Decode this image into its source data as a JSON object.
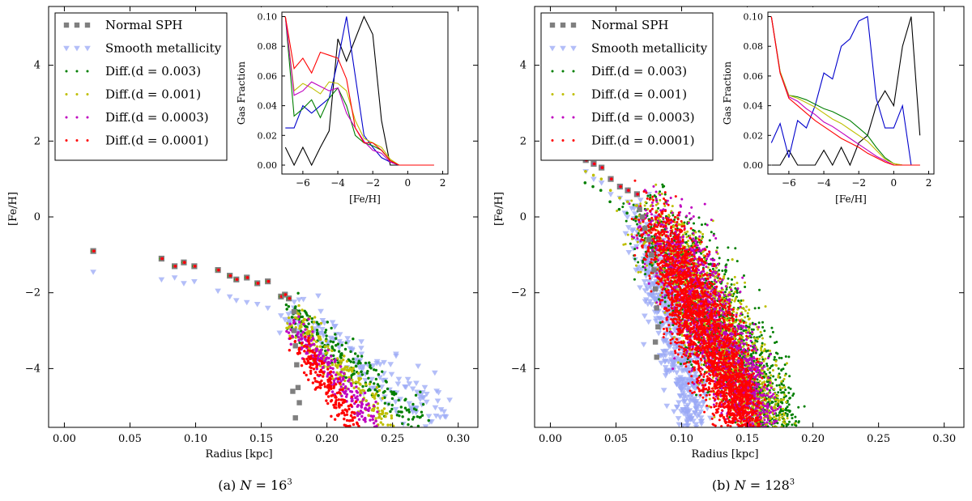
{
  "chart_data": [
    {
      "type": "scatter",
      "caption_prefix": "(a)",
      "caption_var": "N",
      "caption_eq": "= 16",
      "caption_exp": "3",
      "xlabel": "Radius [kpc]",
      "ylabel": "[Fe/H]",
      "xlim": [
        -0.012,
        0.315
      ],
      "ylim": [
        -5.55,
        5.55
      ],
      "xticks": [
        0.0,
        0.05,
        0.1,
        0.15,
        0.2,
        0.25,
        0.3
      ],
      "xticklabels": [
        "0.00",
        "0.05",
        "0.10",
        "0.15",
        "0.20",
        "0.25",
        "0.30"
      ],
      "yticks": [
        -4,
        -2,
        0,
        2,
        4
      ],
      "yticklabels": [
        "−4",
        "−2",
        "0",
        "2",
        "4"
      ],
      "legend": [
        {
          "label": "Normal SPH",
          "color": "#7f7f7f",
          "marker": "square"
        },
        {
          "label": "Smooth metallicity",
          "color": "#9aa8f5",
          "marker": "triangle"
        },
        {
          "label": "Diff.(d = 0.003)",
          "color": "#007f00",
          "marker": "dot"
        },
        {
          "label": "Diff.(d = 0.001)",
          "color": "#bfbf00",
          "marker": "dot"
        },
        {
          "label": "Diff.(d = 0.0003)",
          "color": "#bf00bf",
          "marker": "dot"
        },
        {
          "label": "Diff.(d = 0.0001)",
          "color": "#ff0000",
          "marker": "dot"
        }
      ],
      "core": {
        "radii": [
          0.022,
          0.074,
          0.084,
          0.091,
          0.099,
          0.117,
          0.126,
          0.131,
          0.139,
          0.147,
          0.155,
          0.165,
          0.168,
          0.171
        ],
        "normal": [
          -0.9,
          -1.1,
          -1.3,
          -1.2,
          -1.3,
          -1.4,
          -1.55,
          -1.65,
          -1.6,
          -1.75,
          -1.7,
          -2.1,
          -2.05,
          -2.15
        ],
        "smooth": [
          -1.45,
          -1.65,
          -1.6,
          -1.75,
          -1.7,
          -1.95,
          -2.1,
          -2.2,
          -2.25,
          -2.3,
          -2.4,
          -2.6,
          -2.7,
          -2.75
        ]
      },
      "tail": {
        "normal": {
          "x": [
            0.175,
            0.176,
            0.177,
            0.178,
            0.179,
            0.174,
            0.176,
            0.175
          ],
          "y": [
            -3.0,
            -3.4,
            -3.9,
            -4.5,
            -4.9,
            -4.6,
            -5.3,
            -2.5
          ]
        },
        "series": [
          {
            "name": "Smooth metallicity",
            "r0": 0.17,
            "r1": 0.292,
            "y0": -2.45,
            "y1": -5.5,
            "spread": 0.35,
            "n": 160
          },
          {
            "name": "Diff.(d = 0.003)",
            "r0": 0.172,
            "r1": 0.272,
            "y0": -2.45,
            "y1": -5.45,
            "spread": 0.22,
            "n": 220
          },
          {
            "name": "Diff.(d = 0.001)",
            "r0": 0.174,
            "r1": 0.248,
            "y0": -2.7,
            "y1": -5.45,
            "spread": 0.22,
            "n": 220
          },
          {
            "name": "Diff.(d = 0.0003)",
            "r0": 0.176,
            "r1": 0.236,
            "y0": -2.95,
            "y1": -5.45,
            "spread": 0.22,
            "n": 220
          },
          {
            "name": "Diff.(d = 0.0001)",
            "r0": 0.178,
            "r1": 0.22,
            "y0": -3.3,
            "y1": -5.45,
            "spread": 0.2,
            "n": 200
          }
        ]
      },
      "inset": {
        "xlabel": "[Fe/H]",
        "ylabel": "Gas Fraction",
        "xlim": [
          -7.2,
          2.3
        ],
        "ylim": [
          -0.006,
          0.103
        ],
        "xticks": [
          -6,
          -4,
          -2,
          0,
          2
        ],
        "xticklabels": [
          "−6",
          "−4",
          "−2",
          "0",
          "2"
        ],
        "yticks": [
          0.0,
          0.02,
          0.04,
          0.06,
          0.08,
          0.1
        ],
        "yticklabels": [
          "0.00",
          "0.02",
          "0.04",
          "0.06",
          "0.08",
          "0.10"
        ],
        "x": [
          -7.0,
          -6.5,
          -6.0,
          -5.5,
          -5.0,
          -4.5,
          -4.0,
          -3.5,
          -3.0,
          -2.5,
          -2.0,
          -1.5,
          -1.0,
          -0.5,
          0.0,
          0.5,
          1.0,
          1.5
        ],
        "series": [
          {
            "name": "Normal SPH",
            "color": "#000000",
            "values": [
              0.012,
              0.0,
              0.012,
              0.0,
              0.012,
              0.023,
              0.085,
              0.07,
              0.085,
              0.1,
              0.088,
              0.03,
              0.0,
              0.0,
              0.0,
              0.0,
              0.0,
              0.0
            ]
          },
          {
            "name": "Smooth metallicity",
            "color": "#0000cc",
            "values": [
              0.025,
              0.025,
              0.04,
              0.035,
              0.04,
              0.045,
              0.07,
              0.1,
              0.06,
              0.02,
              0.012,
              0.005,
              0.002,
              0.0,
              0.0,
              0.0,
              0.0,
              0.0
            ]
          },
          {
            "name": "Diff.(d = 0.003)",
            "color": "#007f00",
            "values": [
              0.1,
              0.033,
              0.038,
              0.044,
              0.032,
              0.045,
              0.052,
              0.04,
              0.02,
              0.015,
              0.013,
              0.01,
              0.003,
              0.0,
              0.0,
              0.0,
              0.0,
              0.0
            ]
          },
          {
            "name": "Diff.(d = 0.001)",
            "color": "#bfbf00",
            "values": [
              0.1,
              0.05,
              0.055,
              0.052,
              0.048,
              0.056,
              0.055,
              0.05,
              0.03,
              0.018,
              0.015,
              0.012,
              0.004,
              0.0,
              0.0,
              0.0,
              0.0,
              0.0
            ]
          },
          {
            "name": "Diff.(d = 0.0003)",
            "color": "#bf00bf",
            "values": [
              0.1,
              0.047,
              0.05,
              0.056,
              0.053,
              0.05,
              0.052,
              0.035,
              0.025,
              0.016,
              0.01,
              0.008,
              0.002,
              0.0,
              0.0,
              0.0,
              0.0,
              0.0
            ]
          },
          {
            "name": "Diff.(d = 0.0001)",
            "color": "#ff0000",
            "values": [
              0.1,
              0.065,
              0.072,
              0.062,
              0.076,
              0.074,
              0.072,
              0.058,
              0.025,
              0.015,
              0.015,
              0.01,
              0.003,
              0.0,
              0.0,
              0.0,
              0.0,
              0.0
            ]
          }
        ]
      }
    },
    {
      "type": "scatter",
      "caption_prefix": "(b)",
      "caption_var": "N",
      "caption_eq": "= 128",
      "caption_exp": "3",
      "xlabel": "Radius [kpc]",
      "ylabel": "[Fe/H]",
      "xlim": [
        -0.012,
        0.315
      ],
      "ylim": [
        -5.55,
        5.55
      ],
      "xticks": [
        0.0,
        0.05,
        0.1,
        0.15,
        0.2,
        0.25,
        0.3
      ],
      "xticklabels": [
        "0.00",
        "0.05",
        "0.10",
        "0.15",
        "0.20",
        "0.25",
        "0.30"
      ],
      "yticks": [
        -4,
        -2,
        0,
        2,
        4
      ],
      "yticklabels": [
        "−4",
        "−2",
        "0",
        "2",
        "4"
      ],
      "legend": [
        {
          "label": "Normal SPH",
          "color": "#7f7f7f",
          "marker": "square"
        },
        {
          "label": "Smooth metallicity",
          "color": "#9aa8f5",
          "marker": "triangle"
        },
        {
          "label": "Diff.(d = 0.003)",
          "color": "#007f00",
          "marker": "dot"
        },
        {
          "label": "Diff.(d = 0.001)",
          "color": "#bfbf00",
          "marker": "dot"
        },
        {
          "label": "Diff.(d = 0.0003)",
          "color": "#bf00bf",
          "marker": "dot"
        },
        {
          "label": "Diff.(d = 0.0001)",
          "color": "#ff0000",
          "marker": "dot"
        }
      ],
      "core": {
        "radii": [
          0.027,
          0.033,
          0.039,
          0.046,
          0.053,
          0.059,
          0.066
        ],
        "normal": [
          1.5,
          1.4,
          1.3,
          1.0,
          0.8,
          0.7,
          0.6
        ],
        "smooth": [
          1.2,
          1.0,
          0.9,
          0.6,
          0.5,
          0.4,
          0.3
        ]
      },
      "tail": {
        "normal": {
          "x": [
            0.068,
            0.07,
            0.072,
            0.075,
            0.077,
            0.079,
            0.08,
            0.081,
            0.082,
            0.08,
            0.081
          ],
          "y": [
            0.2,
            0.0,
            -0.3,
            -0.6,
            -1.0,
            -1.4,
            -1.9,
            -2.4,
            -2.9,
            -3.3,
            -3.7
          ]
        },
        "series": [
          {
            "name": "Smooth metallicity",
            "r0": 0.064,
            "r1": 0.118,
            "y0": 0.0,
            "y1": -5.5,
            "spread": 0.5,
            "n": 500
          },
          {
            "name": "Diff.(d = 0.003)",
            "r0": 0.07,
            "r1": 0.189,
            "y0": 0.0,
            "y1": -5.5,
            "spread": 0.55,
            "n": 1400
          },
          {
            "name": "Diff.(d = 0.001)",
            "r0": 0.072,
            "r1": 0.18,
            "y0": 0.0,
            "y1": -5.5,
            "spread": 0.55,
            "n": 1400
          },
          {
            "name": "Diff.(d = 0.0003)",
            "r0": 0.074,
            "r1": 0.172,
            "y0": 0.0,
            "y1": -5.5,
            "spread": 0.55,
            "n": 1600
          },
          {
            "name": "Diff.(d = 0.0001)",
            "r0": 0.076,
            "r1": 0.16,
            "y0": -0.3,
            "y1": -5.5,
            "spread": 0.55,
            "n": 2400
          }
        ]
      },
      "inset": {
        "xlabel": "[Fe/H]",
        "ylabel": "Gas Fraction",
        "xlim": [
          -7.2,
          2.3
        ],
        "ylim": [
          -0.006,
          0.103
        ],
        "xticks": [
          -6,
          -4,
          -2,
          0,
          2
        ],
        "xticklabels": [
          "−6",
          "−4",
          "−2",
          "0",
          "2"
        ],
        "yticks": [
          0.0,
          0.02,
          0.04,
          0.06,
          0.08,
          0.1
        ],
        "yticklabels": [
          "0.00",
          "0.02",
          "0.04",
          "0.06",
          "0.08",
          "0.10"
        ],
        "x": [
          -7.0,
          -6.5,
          -6.0,
          -5.5,
          -5.0,
          -4.5,
          -4.0,
          -3.5,
          -3.0,
          -2.5,
          -2.0,
          -1.5,
          -1.0,
          -0.5,
          0.0,
          0.5,
          1.0,
          1.5
        ],
        "series": [
          {
            "name": "Normal SPH",
            "color": "#000000",
            "values": [
              0.0,
              0.0,
              0.01,
              0.0,
              0.0,
              0.0,
              0.01,
              0.0,
              0.012,
              0.0,
              0.015,
              0.02,
              0.04,
              0.05,
              0.04,
              0.08,
              0.1,
              0.02
            ]
          },
          {
            "name": "Smooth metallicity",
            "color": "#0000cc",
            "values": [
              0.015,
              0.028,
              0.005,
              0.03,
              0.025,
              0.04,
              0.062,
              0.058,
              0.08,
              0.085,
              0.097,
              0.1,
              0.045,
              0.025,
              0.025,
              0.04,
              0.0,
              0.0
            ]
          },
          {
            "name": "Diff.(d = 0.003)",
            "color": "#007f00",
            "values": [
              0.1,
              0.063,
              0.047,
              0.046,
              0.044,
              0.041,
              0.038,
              0.036,
              0.033,
              0.03,
              0.025,
              0.02,
              0.012,
              0.005,
              0.001,
              0.0,
              0.0,
              0.0
            ]
          },
          {
            "name": "Diff.(d = 0.001)",
            "color": "#bfbf00",
            "values": [
              0.1,
              0.063,
              0.047,
              0.045,
              0.042,
              0.039,
              0.035,
              0.031,
              0.028,
              0.024,
              0.02,
              0.016,
              0.01,
              0.004,
              0.001,
              0.0,
              0.0,
              0.0
            ]
          },
          {
            "name": "Diff.(d = 0.0003)",
            "color": "#bf00bf",
            "values": [
              0.1,
              0.062,
              0.046,
              0.043,
              0.038,
              0.034,
              0.029,
              0.026,
              0.022,
              0.018,
              0.014,
              0.01,
              0.006,
              0.003,
              0.0,
              0.0,
              0.0,
              0.0
            ]
          },
          {
            "name": "Diff.(d = 0.0001)",
            "color": "#ff0000",
            "values": [
              0.1,
              0.062,
              0.045,
              0.04,
              0.035,
              0.03,
              0.026,
              0.022,
              0.018,
              0.015,
              0.012,
              0.008,
              0.005,
              0.002,
              0.0,
              0.0,
              0.0,
              0.0
            ]
          }
        ]
      }
    }
  ]
}
